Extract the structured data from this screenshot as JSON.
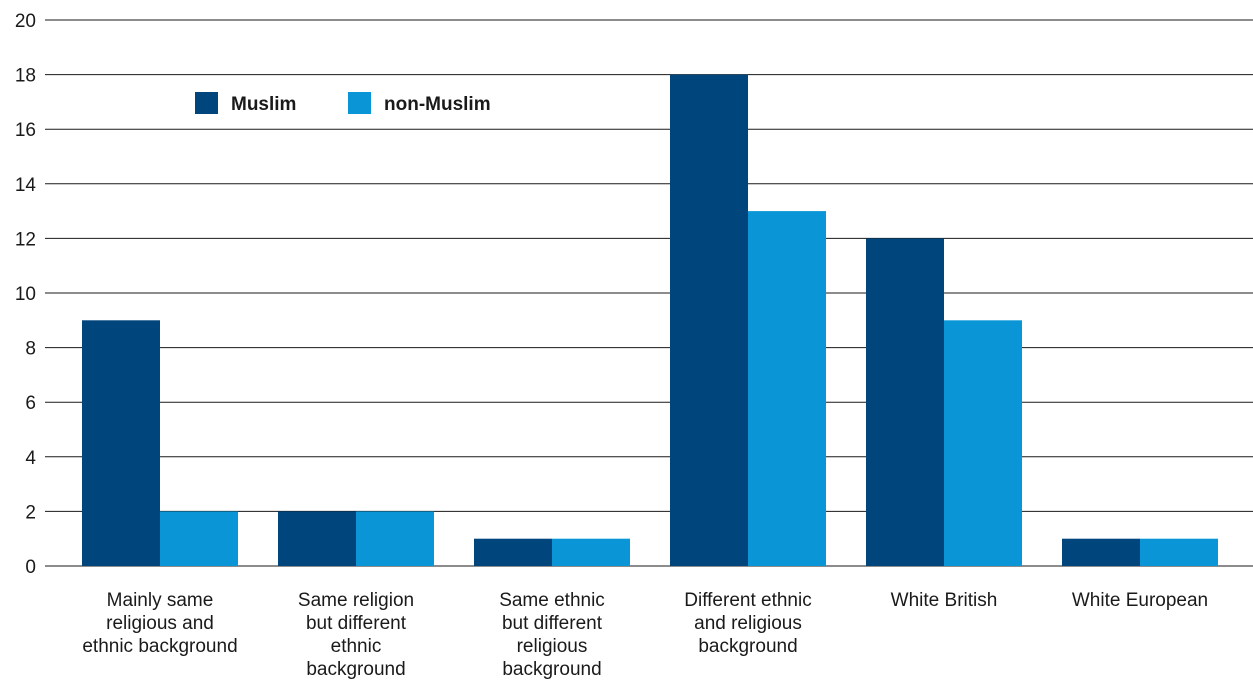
{
  "chart_data": {
    "type": "bar",
    "title": "",
    "xlabel": "",
    "ylabel": "",
    "ylim": [
      0,
      20
    ],
    "yticks": [
      0,
      2,
      4,
      6,
      8,
      10,
      12,
      14,
      16,
      18,
      20
    ],
    "grid": true,
    "legend_position": "top-left",
    "categories": [
      [
        "Mainly same",
        "religious and",
        "ethnic background"
      ],
      [
        "Same religion",
        "but different",
        "ethnic",
        "background"
      ],
      [
        "Same ethnic",
        "but different",
        "religious",
        "background"
      ],
      [
        "Different ethnic",
        "and religious",
        "background"
      ],
      [
        "White British"
      ],
      [
        "White European"
      ]
    ],
    "series": [
      {
        "name": "Muslim",
        "color": "#00457c",
        "values": [
          9,
          2,
          1,
          18,
          12,
          1
        ]
      },
      {
        "name": "non-Muslim",
        "color": "#0a96d6",
        "values": [
          2,
          2,
          1,
          13,
          9,
          1
        ]
      }
    ]
  }
}
